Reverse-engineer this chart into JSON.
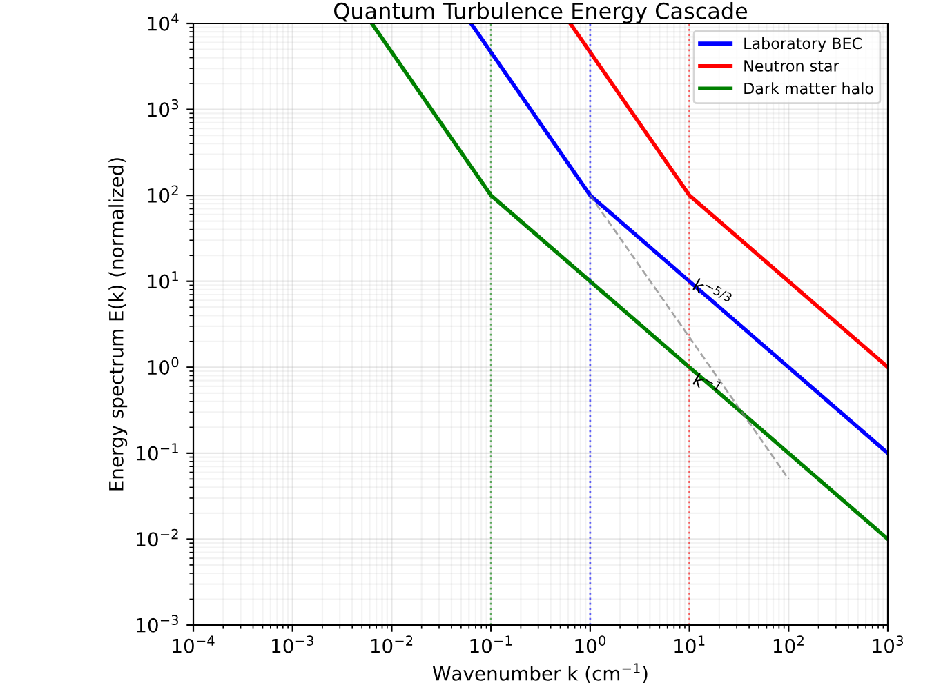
{
  "chart_data": {
    "type": "line",
    "title": "Quantum Turbulence Energy Cascade",
    "xlabel": "Wavenumber k (cm$^{−1}$)",
    "ylabel": "Energy spectrum E(k) (normalized)",
    "log": "xy",
    "xlim": [
      0.0001,
      1000
    ],
    "ylim": [
      0.001,
      10000
    ],
    "xticks": [
      {
        "value": 0.0001,
        "label": "10$^{−4}$"
      },
      {
        "value": 0.001,
        "label": "10$^{−3}$"
      },
      {
        "value": 0.01,
        "label": "10$^{−2}$"
      },
      {
        "value": 0.1,
        "label": "10$^{−1}$"
      },
      {
        "value": 1,
        "label": "10$^{0}$"
      },
      {
        "value": 10,
        "label": "10$^{1}$"
      },
      {
        "value": 100,
        "label": "10$^{2}$"
      },
      {
        "value": 1000,
        "label": "10$^{3}$"
      }
    ],
    "yticks": [
      {
        "value": 0.001,
        "label": "10$^{−3}$"
      },
      {
        "value": 0.01,
        "label": "10$^{−2}$"
      },
      {
        "value": 0.1,
        "label": "10$^{−1}$"
      },
      {
        "value": 1,
        "label": "10$^{0}$"
      },
      {
        "value": 10,
        "label": "10$^{1}$"
      },
      {
        "value": 100,
        "label": "10$^{2}$"
      },
      {
        "value": 1000,
        "label": "10$^{3}$"
      },
      {
        "value": 10000,
        "label": "10$^{4}$"
      }
    ],
    "grid": true,
    "legend": "top right",
    "marker": "none",
    "line_style": "solid",
    "series": [
      {
        "name": "Laboratory BEC",
        "color": "#0000ff",
        "x": [
          0.063,
          1,
          1000
        ],
        "values": [
          10000,
          100,
          0.1
        ]
      },
      {
        "name": "Neutron star",
        "color": "#ff0000",
        "x": [
          0.63,
          10,
          1000
        ],
        "values": [
          10000,
          100,
          1
        ]
      },
      {
        "name": "Dark matter halo",
        "color": "#008000",
        "x": [
          0.0063,
          0.1,
          1000
        ],
        "values": [
          10000,
          100,
          0.01
        ]
      },
      {
        "color": "#808080",
        "line_style": "dashed",
        "x": [
          1,
          100
        ],
        "values": [
          100,
          0.05
        ]
      }
    ],
    "ref_lines": [
      {
        "axis": "x",
        "value": 0.1,
        "color": "#008000",
        "line_style": "dotted"
      },
      {
        "axis": "x",
        "value": 1,
        "color": "#0000ff",
        "line_style": "dotted"
      },
      {
        "axis": "x",
        "value": 10,
        "color": "#ff0000",
        "line_style": "dotted"
      }
    ],
    "annotations": [
      {
        "text": "k$^{−5/3}$",
        "x": 10,
        "y": 7
      },
      {
        "text": "k$^{−1}$",
        "x": 10,
        "y": 0.6
      }
    ]
  }
}
